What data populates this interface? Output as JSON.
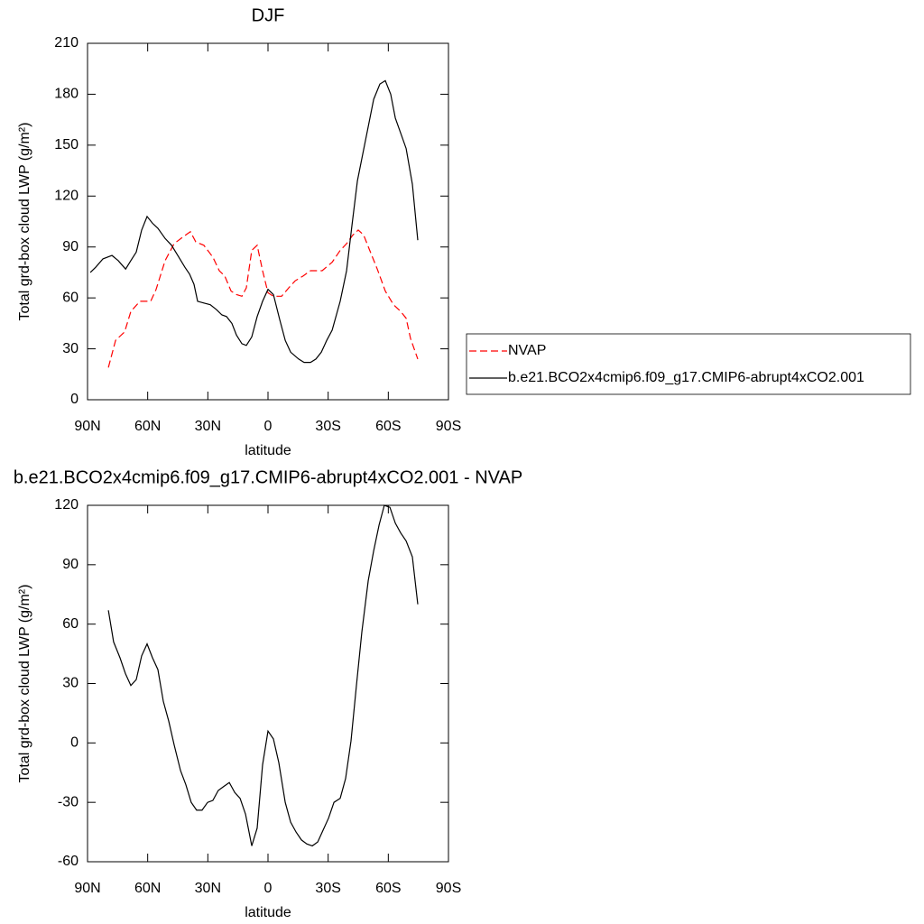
{
  "chart_data": [
    {
      "type": "line",
      "title": "DJF",
      "xlabel": "latitude",
      "ylabel": "Total grd-box cloud LWP (g/m²)",
      "xlim": [
        90,
        -90
      ],
      "xticks": [
        {
          "value": 90,
          "label": "90N"
        },
        {
          "value": 60,
          "label": "60N"
        },
        {
          "value": 30,
          "label": "30N"
        },
        0,
        {
          "value": -30,
          "label": "30S"
        },
        {
          "value": -60,
          "label": "60S"
        },
        {
          "value": -90,
          "label": "90S"
        }
      ],
      "ylim": [
        0,
        210
      ],
      "yticks": [
        0,
        30,
        60,
        90,
        120,
        150,
        180,
        210
      ],
      "legend": "right",
      "series": [
        {
          "name": "NVAP",
          "color": "#ff0000",
          "linestyle": "dashed",
          "x": [
            79.6,
            76.0,
            71.5,
            68.4,
            63.9,
            58.5,
            55.8,
            51.3,
            46.8,
            42.3,
            38.7,
            36.0,
            32.0,
            27.5,
            24.3,
            21.6,
            18.4,
            15.7,
            13.0,
            10.8,
            8.1,
            5.4,
            2.7,
            0,
            -2.7,
            -6.8,
            -10.4,
            -13.5,
            -17.6,
            -21.2,
            -27.0,
            -32.0,
            -36.0,
            -39.2,
            -42.3,
            -45.0,
            -47.7,
            -50.4,
            -54.5,
            -58.5,
            -62.6,
            -66.2,
            -68.9,
            -71.1,
            -74.7
          ],
          "values": [
            19,
            35,
            40,
            52,
            58,
            58,
            65,
            82,
            92,
            96,
            99,
            93,
            91,
            84,
            76,
            73,
            64,
            62,
            61,
            66,
            88,
            91,
            76,
            63,
            61,
            61,
            66,
            70,
            73,
            76,
            76,
            81,
            88,
            92,
            97,
            100,
            97,
            89,
            77,
            64,
            56,
            52,
            48,
            36,
            24
          ]
        },
        {
          "name": "b.e21.BCO2x4cmip6.f09_g17.CMIP6-abrupt4xCO2.001",
          "color": "#000000",
          "linestyle": "solid",
          "x": [
            88.6,
            86.0,
            82.3,
            77.8,
            74.7,
            71.0,
            68.4,
            65.7,
            63.0,
            60.3,
            57.6,
            54.9,
            51.3,
            48.1,
            45.0,
            41.4,
            39.1,
            36.9,
            35.1,
            32.0,
            28.8,
            25.6,
            23.0,
            20.7,
            18.0,
            15.7,
            13.0,
            10.8,
            8.1,
            5.4,
            2.7,
            0,
            -2.7,
            -5.9,
            -8.6,
            -11.3,
            -15.3,
            -18.0,
            -21.2,
            -23.9,
            -26.6,
            -29.3,
            -32.0,
            -36.0,
            -39.2,
            -41.9,
            -44.6,
            -47.3,
            -50.0,
            -52.7,
            -55.8,
            -58.5,
            -61.2,
            -63.5,
            -66.2,
            -68.9,
            -72.0,
            -74.7
          ],
          "values": [
            75,
            78,
            83,
            85,
            82,
            77,
            82,
            87,
            100,
            108,
            104,
            101,
            95,
            91,
            85,
            78,
            74,
            68,
            58,
            57,
            56,
            53,
            50,
            49,
            45,
            38,
            33,
            32,
            37,
            49,
            58,
            65,
            62,
            47,
            35,
            28,
            24,
            22,
            22,
            24,
            28,
            35,
            41,
            58,
            76,
            103,
            129,
            145,
            161,
            177,
            186,
            188,
            180,
            166,
            157,
            148,
            127,
            94
          ]
        }
      ]
    },
    {
      "type": "line",
      "title": "b.e21.BCO2x4cmip6.f09_g17.CMIP6-abrupt4xCO2.001 - NVAP",
      "xlabel": "latitude",
      "ylabel": "Total grd-box cloud LWP (g/m²)",
      "xlim": [
        90,
        -90
      ],
      "xticks": [
        {
          "value": 90,
          "label": "90N"
        },
        {
          "value": 60,
          "label": "60N"
        },
        {
          "value": 30,
          "label": "30N"
        },
        0,
        {
          "value": -30,
          "label": "30S"
        },
        {
          "value": -60,
          "label": "60S"
        },
        {
          "value": -90,
          "label": "90S"
        }
      ],
      "ylim": [
        -60,
        120
      ],
      "yticks": [
        -60,
        -30,
        0,
        30,
        60,
        90,
        120
      ],
      "series": [
        {
          "color": "#000000",
          "linestyle": "solid",
          "x": [
            79.6,
            77.0,
            73.8,
            71.1,
            68.4,
            65.7,
            63.0,
            60.3,
            57.6,
            54.9,
            52.2,
            49.5,
            46.8,
            43.6,
            41.0,
            38.3,
            35.6,
            32.9,
            30.1,
            27.5,
            24.8,
            22.1,
            19.3,
            16.6,
            13.9,
            11.2,
            8.1,
            5.4,
            2.7,
            0,
            -2.7,
            -5.4,
            -8.6,
            -11.3,
            -14.0,
            -16.7,
            -19.4,
            -22.1,
            -24.8,
            -27.5,
            -30.2,
            -32.9,
            -36.0,
            -38.7,
            -41.4,
            -44.1,
            -46.8,
            -50.0,
            -52.7,
            -55.4,
            -58.0,
            -60.8,
            -63.5,
            -66.2,
            -68.9,
            -72.0,
            -74.7
          ],
          "values": [
            67,
            51,
            43,
            35,
            29,
            32,
            44,
            50,
            43,
            37,
            21,
            11,
            -1,
            -14,
            -21,
            -30,
            -34,
            -34,
            -30,
            -29,
            -24,
            -22,
            -20,
            -25,
            -28,
            -36,
            -52,
            -43,
            -11,
            6,
            2,
            -10,
            -30,
            -40,
            -45,
            -49,
            -51,
            -52,
            -50,
            -44,
            -38,
            -30,
            -28,
            -18,
            1,
            29,
            56,
            82,
            97,
            110,
            120,
            119,
            111,
            106,
            102,
            94,
            70
          ]
        }
      ]
    }
  ]
}
